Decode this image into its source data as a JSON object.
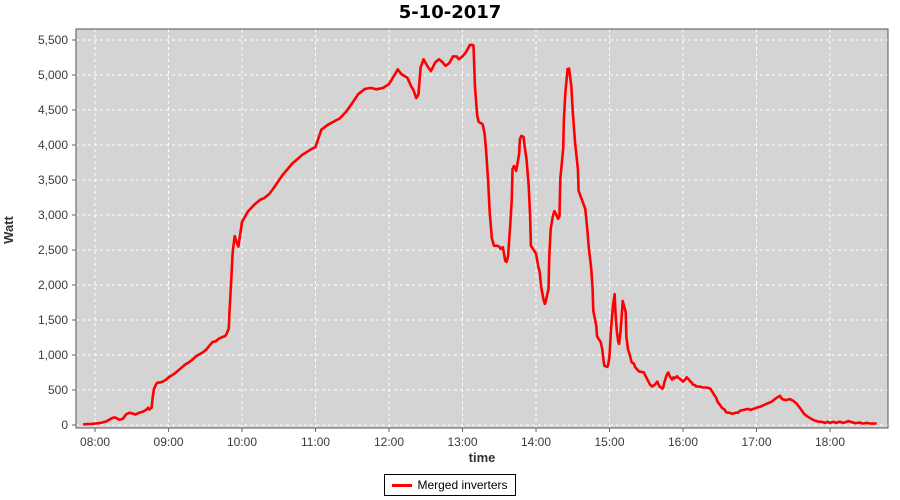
{
  "title": "5-10-2017",
  "colors": {
    "plot_bg": "#d4d4d4",
    "grid": "#ffffff",
    "plot_border": "#545454",
    "tick_mark": "#666666",
    "tick_label": "#3b3b3b",
    "series_line": "#ff0000",
    "legend_border": "#000000",
    "legend_bg": "#ffffff"
  },
  "chart_data": {
    "type": "line",
    "title": "5-10-2017",
    "xlabel": "time",
    "ylabel": "Watt",
    "grid": true,
    "legend_position": "bottom",
    "legend": {
      "entries": [
        {
          "label": "Merged inverters",
          "color": "#ff0000"
        }
      ]
    },
    "x_domain_hours": [
      7.741,
      18.789
    ],
    "y_domain_watt": [
      -43,
      5657
    ],
    "x_ticks": [
      {
        "t": 8,
        "label": "08:00"
      },
      {
        "t": 9,
        "label": "09:00"
      },
      {
        "t": 10,
        "label": "10:00"
      },
      {
        "t": 11,
        "label": "11:00"
      },
      {
        "t": 12,
        "label": "12:00"
      },
      {
        "t": 13,
        "label": "13:00"
      },
      {
        "t": 14,
        "label": "14:00"
      },
      {
        "t": 15,
        "label": "15:00"
      },
      {
        "t": 16,
        "label": "16:00"
      },
      {
        "t": 17,
        "label": "17:00"
      },
      {
        "t": 18,
        "label": "18:00"
      }
    ],
    "y_ticks": [
      {
        "v": 0,
        "label": "0"
      },
      {
        "v": 500,
        "label": "500"
      },
      {
        "v": 1000,
        "label": "1,000"
      },
      {
        "v": 1500,
        "label": "1,500"
      },
      {
        "v": 2000,
        "label": "2,000"
      },
      {
        "v": 2500,
        "label": "2,500"
      },
      {
        "v": 3000,
        "label": "3,000"
      },
      {
        "v": 3500,
        "label": "3,500"
      },
      {
        "v": 4000,
        "label": "4,000"
      },
      {
        "v": 4500,
        "label": "4,500"
      },
      {
        "v": 5000,
        "label": "5,000"
      },
      {
        "v": 5500,
        "label": "5,500"
      }
    ],
    "series": [
      {
        "name": "Merged inverters",
        "color": "#ff0000",
        "points": [
          [
            7.85,
            10
          ],
          [
            7.9,
            12
          ],
          [
            7.95,
            15
          ],
          [
            8.0,
            20
          ],
          [
            8.08,
            30
          ],
          [
            8.15,
            50
          ],
          [
            8.2,
            80
          ],
          [
            8.25,
            105
          ],
          [
            8.28,
            105
          ],
          [
            8.33,
            75
          ],
          [
            8.38,
            90
          ],
          [
            8.42,
            150
          ],
          [
            8.47,
            175
          ],
          [
            8.52,
            160
          ],
          [
            8.55,
            150
          ],
          [
            8.6,
            175
          ],
          [
            8.65,
            190
          ],
          [
            8.7,
            220
          ],
          [
            8.72,
            245
          ],
          [
            8.74,
            220
          ],
          [
            8.77,
            250
          ],
          [
            8.78,
            360
          ],
          [
            8.8,
            505
          ],
          [
            8.83,
            580
          ],
          [
            8.85,
            605
          ],
          [
            8.88,
            605
          ],
          [
            8.92,
            620
          ],
          [
            8.97,
            650
          ],
          [
            9.0,
            680
          ],
          [
            9.07,
            725
          ],
          [
            9.1,
            750
          ],
          [
            9.15,
            795
          ],
          [
            9.2,
            840
          ],
          [
            9.23,
            865
          ],
          [
            9.28,
            895
          ],
          [
            9.33,
            940
          ],
          [
            9.38,
            985
          ],
          [
            9.42,
            1010
          ],
          [
            9.47,
            1040
          ],
          [
            9.52,
            1085
          ],
          [
            9.55,
            1125
          ],
          [
            9.6,
            1185
          ],
          [
            9.65,
            1200
          ],
          [
            9.68,
            1230
          ],
          [
            9.73,
            1255
          ],
          [
            9.77,
            1270
          ],
          [
            9.79,
            1300
          ],
          [
            9.8,
            1330
          ],
          [
            9.82,
            1375
          ],
          [
            9.83,
            1620
          ],
          [
            9.85,
            2000
          ],
          [
            9.87,
            2430
          ],
          [
            9.88,
            2530
          ],
          [
            9.9,
            2700
          ],
          [
            9.93,
            2600
          ],
          [
            9.95,
            2550
          ],
          [
            10.0,
            2900
          ],
          [
            10.08,
            3050
          ],
          [
            10.17,
            3150
          ],
          [
            10.25,
            3220
          ],
          [
            10.3,
            3240
          ],
          [
            10.37,
            3300
          ],
          [
            10.42,
            3370
          ],
          [
            10.55,
            3570
          ],
          [
            10.68,
            3730
          ],
          [
            10.82,
            3860
          ],
          [
            10.95,
            3945
          ],
          [
            11.0,
            3970
          ],
          [
            11.08,
            4220
          ],
          [
            11.17,
            4290
          ],
          [
            11.25,
            4335
          ],
          [
            11.33,
            4380
          ],
          [
            11.42,
            4480
          ],
          [
            11.5,
            4600
          ],
          [
            11.58,
            4725
          ],
          [
            11.67,
            4800
          ],
          [
            11.75,
            4815
          ],
          [
            11.83,
            4795
          ],
          [
            11.92,
            4815
          ],
          [
            12.0,
            4870
          ],
          [
            12.08,
            5010
          ],
          [
            12.12,
            5080
          ],
          [
            12.17,
            5010
          ],
          [
            12.25,
            4960
          ],
          [
            12.3,
            4840
          ],
          [
            12.33,
            4790
          ],
          [
            12.37,
            4670
          ],
          [
            12.4,
            4720
          ],
          [
            12.43,
            5105
          ],
          [
            12.47,
            5225
          ],
          [
            12.52,
            5130
          ],
          [
            12.57,
            5055
          ],
          [
            12.63,
            5180
          ],
          [
            12.68,
            5225
          ],
          [
            12.73,
            5180
          ],
          [
            12.77,
            5130
          ],
          [
            12.82,
            5170
          ],
          [
            12.87,
            5265
          ],
          [
            12.92,
            5265
          ],
          [
            12.95,
            5225
          ],
          [
            13.0,
            5265
          ],
          [
            13.05,
            5330
          ],
          [
            13.1,
            5430
          ],
          [
            13.13,
            5430
          ],
          [
            13.15,
            5420
          ],
          [
            13.17,
            4830
          ],
          [
            13.2,
            4420
          ],
          [
            13.22,
            4330
          ],
          [
            13.27,
            4300
          ],
          [
            13.28,
            4270
          ],
          [
            13.3,
            4160
          ],
          [
            13.32,
            3940
          ],
          [
            13.35,
            3470
          ],
          [
            13.37,
            3040
          ],
          [
            13.4,
            2660
          ],
          [
            13.42,
            2590
          ],
          [
            13.43,
            2560
          ],
          [
            13.48,
            2560
          ],
          [
            13.5,
            2545
          ],
          [
            13.52,
            2515
          ],
          [
            13.55,
            2540
          ],
          [
            13.58,
            2345
          ],
          [
            13.6,
            2330
          ],
          [
            13.62,
            2415
          ],
          [
            13.65,
            2870
          ],
          [
            13.67,
            3230
          ],
          [
            13.68,
            3655
          ],
          [
            13.7,
            3700
          ],
          [
            13.73,
            3630
          ],
          [
            13.77,
            3870
          ],
          [
            13.78,
            4085
          ],
          [
            13.8,
            4130
          ],
          [
            13.83,
            4115
          ],
          [
            13.85,
            3945
          ],
          [
            13.87,
            3800
          ],
          [
            13.9,
            3415
          ],
          [
            13.92,
            2985
          ],
          [
            13.93,
            2560
          ],
          [
            14.0,
            2450
          ],
          [
            14.03,
            2270
          ],
          [
            14.05,
            2185
          ],
          [
            14.07,
            1970
          ],
          [
            14.1,
            1800
          ],
          [
            14.12,
            1730
          ],
          [
            14.13,
            1755
          ],
          [
            14.17,
            1945
          ],
          [
            14.18,
            2415
          ],
          [
            14.2,
            2800
          ],
          [
            14.23,
            2985
          ],
          [
            14.25,
            3055
          ],
          [
            14.27,
            3015
          ],
          [
            14.3,
            2945
          ],
          [
            14.32,
            2985
          ],
          [
            14.33,
            3515
          ],
          [
            14.37,
            3945
          ],
          [
            14.38,
            4370
          ],
          [
            14.4,
            4755
          ],
          [
            14.43,
            5085
          ],
          [
            14.45,
            5090
          ],
          [
            14.48,
            4845
          ],
          [
            14.5,
            4470
          ],
          [
            14.53,
            4045
          ],
          [
            14.57,
            3655
          ],
          [
            14.58,
            3345
          ],
          [
            14.62,
            3230
          ],
          [
            14.67,
            3085
          ],
          [
            14.68,
            2985
          ],
          [
            14.7,
            2760
          ],
          [
            14.72,
            2515
          ],
          [
            14.75,
            2255
          ],
          [
            14.77,
            1945
          ],
          [
            14.78,
            1630
          ],
          [
            14.82,
            1415
          ],
          [
            14.83,
            1270
          ],
          [
            14.85,
            1230
          ],
          [
            14.88,
            1185
          ],
          [
            14.9,
            1085
          ],
          [
            14.92,
            915
          ],
          [
            14.93,
            845
          ],
          [
            14.97,
            830
          ],
          [
            14.98,
            845
          ],
          [
            15.0,
            985
          ],
          [
            15.02,
            1370
          ],
          [
            15.05,
            1730
          ],
          [
            15.07,
            1870
          ],
          [
            15.08,
            1615
          ],
          [
            15.1,
            1330
          ],
          [
            15.12,
            1185
          ],
          [
            15.13,
            1160
          ],
          [
            15.15,
            1330
          ],
          [
            15.17,
            1615
          ],
          [
            15.18,
            1770
          ],
          [
            15.22,
            1615
          ],
          [
            15.23,
            1260
          ],
          [
            15.25,
            1085
          ],
          [
            15.28,
            985
          ],
          [
            15.3,
            895
          ],
          [
            15.33,
            880
          ],
          [
            15.35,
            825
          ],
          [
            15.4,
            765
          ],
          [
            15.47,
            750
          ],
          [
            15.48,
            720
          ],
          [
            15.53,
            620
          ],
          [
            15.55,
            580
          ],
          [
            15.58,
            550
          ],
          [
            15.62,
            580
          ],
          [
            15.65,
            620
          ],
          [
            15.68,
            550
          ],
          [
            15.72,
            520
          ],
          [
            15.73,
            535
          ],
          [
            15.75,
            620
          ],
          [
            15.78,
            720
          ],
          [
            15.8,
            750
          ],
          [
            15.82,
            695
          ],
          [
            15.85,
            650
          ],
          [
            15.87,
            680
          ],
          [
            15.88,
            665
          ],
          [
            15.92,
            695
          ],
          [
            15.93,
            680
          ],
          [
            15.97,
            650
          ],
          [
            16.0,
            620
          ],
          [
            16.03,
            650
          ],
          [
            16.05,
            680
          ],
          [
            16.08,
            650
          ],
          [
            16.1,
            620
          ],
          [
            16.12,
            605
          ],
          [
            16.13,
            580
          ],
          [
            16.17,
            565
          ],
          [
            16.18,
            550
          ],
          [
            16.22,
            550
          ],
          [
            16.27,
            535
          ],
          [
            16.32,
            535
          ],
          [
            16.37,
            520
          ],
          [
            16.38,
            505
          ],
          [
            16.4,
            475
          ],
          [
            16.42,
            435
          ],
          [
            16.45,
            390
          ],
          [
            16.47,
            330
          ],
          [
            16.5,
            290
          ],
          [
            16.52,
            260
          ],
          [
            16.53,
            245
          ],
          [
            16.57,
            215
          ],
          [
            16.58,
            190
          ],
          [
            16.6,
            175
          ],
          [
            16.63,
            175
          ],
          [
            16.67,
            160
          ],
          [
            16.72,
            175
          ],
          [
            16.75,
            175
          ],
          [
            16.78,
            205
          ],
          [
            16.83,
            215
          ],
          [
            16.88,
            230
          ],
          [
            16.92,
            215
          ],
          [
            17.0,
            245
          ],
          [
            17.07,
            270
          ],
          [
            17.13,
            300
          ],
          [
            17.2,
            330
          ],
          [
            17.27,
            385
          ],
          [
            17.32,
            415
          ],
          [
            17.35,
            370
          ],
          [
            17.4,
            355
          ],
          [
            17.45,
            370
          ],
          [
            17.5,
            345
          ],
          [
            17.55,
            300
          ],
          [
            17.6,
            230
          ],
          [
            17.65,
            155
          ],
          [
            17.7,
            115
          ],
          [
            17.75,
            85
          ],
          [
            17.8,
            60
          ],
          [
            17.85,
            45
          ],
          [
            17.88,
            45
          ],
          [
            17.93,
            30
          ],
          [
            17.97,
            45
          ],
          [
            18.0,
            30
          ],
          [
            18.05,
            45
          ],
          [
            18.08,
            30
          ],
          [
            18.13,
            45
          ],
          [
            18.18,
            30
          ],
          [
            18.23,
            45
          ],
          [
            18.25,
            55
          ],
          [
            18.3,
            40
          ],
          [
            18.35,
            25
          ],
          [
            18.4,
            35
          ],
          [
            18.45,
            20
          ],
          [
            18.5,
            30
          ],
          [
            18.55,
            20
          ],
          [
            18.62,
            20
          ]
        ]
      }
    ]
  }
}
